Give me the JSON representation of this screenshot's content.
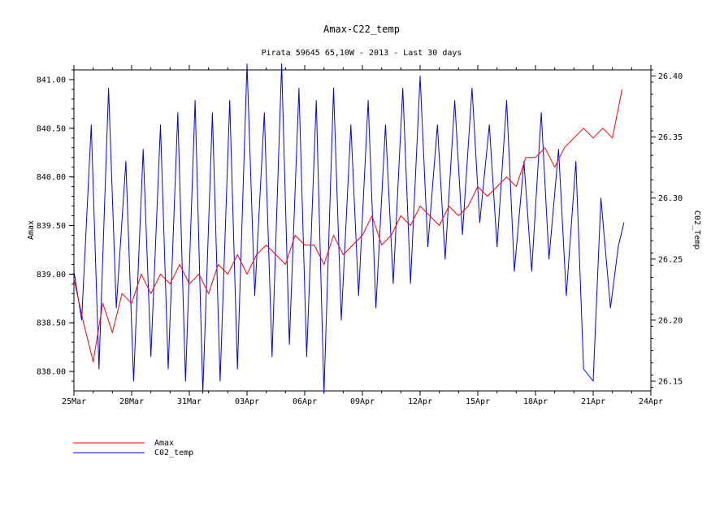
{
  "chart_data": {
    "type": "line",
    "title": "Amax-C22_temp",
    "subtitle": "Pirata 59645 65,10W - 2013 - Last 30 days",
    "xlabel": "",
    "ylabel_left": "Amax",
    "ylabel_right": "C02_Temp",
    "x_tick_labels": [
      "25Mar",
      "28Mar",
      "31Mar",
      "03Apr",
      "06Apr",
      "09Apr",
      "12Apr",
      "15Apr",
      "18Apr",
      "21Apr",
      "24Apr"
    ],
    "x_range_days": [
      0,
      30
    ],
    "ylim_left": [
      837.8,
      841.1
    ],
    "ylim_right": [
      26.142,
      26.405
    ],
    "y_left_ticks": [
      838.0,
      838.5,
      839.0,
      839.5,
      840.0,
      840.5,
      841.0
    ],
    "y_left_tick_labels": [
      "838.00",
      "838.50",
      "839.00",
      "839.50",
      "840.00",
      "840.50",
      "841.00"
    ],
    "y_right_ticks": [
      26.15,
      26.2,
      26.25,
      26.3,
      26.35,
      26.4
    ],
    "y_right_tick_labels": [
      "26.15",
      "26.20",
      "26.25",
      "26.30",
      "26.35",
      "26.40"
    ],
    "grid": false,
    "legend_position": "bottom-left",
    "series": [
      {
        "name": "Amax",
        "legend_label": "Amax",
        "axis": "left",
        "color": "#ff0000",
        "x": [
          0.0,
          0.5,
          1.0,
          1.5,
          2.0,
          2.5,
          3.0,
          3.5,
          4.0,
          4.5,
          5.0,
          5.5,
          6.0,
          6.5,
          7.0,
          7.5,
          8.0,
          8.5,
          9.0,
          9.5,
          10.0,
          10.5,
          11.0,
          11.5,
          12.0,
          12.5,
          13.0,
          13.5,
          14.0,
          14.5,
          15.0,
          15.5,
          16.0,
          16.5,
          17.0,
          17.5,
          18.0,
          18.5,
          19.0,
          19.5,
          20.0,
          20.5,
          21.0,
          21.5,
          22.0,
          22.5,
          23.0,
          23.5,
          24.0,
          24.5,
          25.0,
          25.5,
          26.0,
          26.5,
          27.0,
          27.5,
          28.0,
          28.5
        ],
        "values": [
          838.95,
          838.5,
          838.1,
          838.7,
          838.4,
          838.8,
          838.7,
          839.0,
          838.8,
          839.0,
          838.9,
          839.1,
          838.9,
          839.0,
          838.8,
          839.1,
          839.0,
          839.2,
          839.0,
          839.2,
          839.3,
          839.2,
          839.1,
          839.4,
          839.3,
          839.3,
          839.1,
          839.4,
          839.2,
          839.3,
          839.4,
          839.6,
          839.3,
          839.4,
          839.6,
          839.5,
          839.7,
          839.6,
          839.5,
          839.7,
          839.6,
          839.7,
          839.9,
          839.8,
          839.9,
          840.0,
          839.9,
          840.2,
          840.2,
          840.3,
          840.1,
          840.3,
          840.4,
          840.5,
          840.4,
          840.5,
          840.4,
          840.9
        ]
      },
      {
        "name": "C02_temp",
        "legend_label": "C02_temp",
        "axis": "right",
        "color": "#0000ff",
        "x": [
          0.0,
          0.4,
          0.9,
          1.3,
          1.8,
          2.2,
          2.7,
          3.1,
          3.6,
          4.0,
          4.5,
          4.9,
          5.4,
          5.8,
          6.3,
          6.7,
          7.2,
          7.6,
          8.1,
          8.5,
          9.0,
          9.4,
          9.9,
          10.3,
          10.8,
          11.2,
          11.7,
          12.1,
          12.6,
          13.0,
          13.5,
          13.9,
          14.4,
          14.8,
          15.3,
          15.7,
          16.2,
          16.6,
          17.1,
          17.5,
          18.0,
          18.4,
          18.9,
          19.3,
          19.8,
          20.2,
          20.7,
          21.1,
          21.6,
          22.0,
          22.5,
          22.9,
          23.4,
          23.8,
          24.3,
          24.7,
          25.2,
          25.6,
          26.1,
          26.5,
          27.0,
          27.4,
          27.9,
          28.3,
          28.6
        ],
        "values": [
          26.24,
          26.2,
          26.36,
          26.16,
          26.39,
          26.21,
          26.33,
          26.15,
          26.34,
          26.17,
          26.36,
          26.16,
          26.37,
          26.15,
          26.38,
          26.14,
          26.37,
          26.15,
          26.38,
          26.16,
          26.41,
          26.22,
          26.37,
          26.17,
          26.41,
          26.18,
          26.39,
          26.17,
          26.38,
          26.14,
          26.39,
          26.2,
          26.36,
          26.22,
          26.38,
          26.21,
          26.36,
          26.23,
          26.39,
          26.23,
          26.4,
          26.26,
          26.36,
          26.25,
          26.38,
          26.27,
          26.39,
          26.28,
          26.36,
          26.26,
          26.38,
          26.24,
          26.33,
          26.24,
          26.37,
          26.25,
          26.34,
          26.22,
          26.33,
          26.16,
          26.15,
          26.3,
          26.21,
          26.26,
          26.28
        ]
      }
    ]
  }
}
